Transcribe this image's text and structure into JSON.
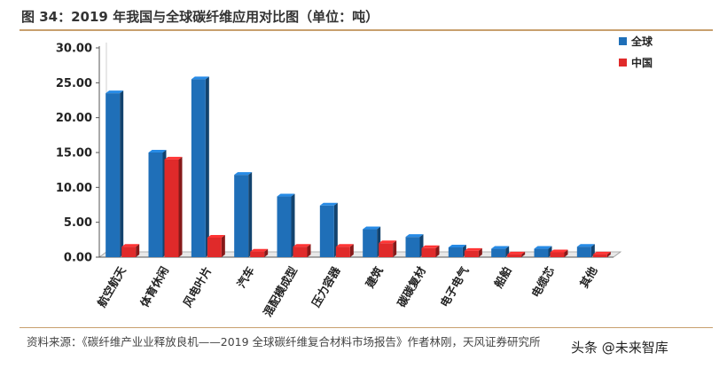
{
  "title": "图 34：2019 年我国与全球碳纤维应用对比图（单位：吨）",
  "source": "资料来源：《碳纤维产业业释放良机——2019 全球碳纤维复合材料市场报告》作者林刚，天风证券研究所",
  "watermark": "头条 @未来智库",
  "chart_data": {
    "type": "bar",
    "title": "图 34：2019 年我国与全球碳纤维应用对比图（单位：吨）",
    "categories": [
      "航空航天",
      "体育休闲",
      "风电叶片",
      "汽车",
      "混配模成型",
      "压力容器",
      "建筑",
      "碳碳复材",
      "电子电气",
      "船舶",
      "电缆芯",
      "其他"
    ],
    "series": [
      {
        "name": "全球",
        "color": "#1f6fb8",
        "values": [
          23.5,
          15.0,
          25.5,
          11.8,
          8.7,
          7.4,
          4.0,
          2.9,
          1.4,
          1.2,
          1.2,
          1.5
        ]
      },
      {
        "name": "中国",
        "color": "#e02a2a",
        "values": [
          1.5,
          14.0,
          2.8,
          0.8,
          1.5,
          1.5,
          2.0,
          1.3,
          0.9,
          0.4,
          0.7,
          0.4
        ]
      }
    ],
    "yticks": [
      "0.00",
      "5.00",
      "10.00",
      "15.00",
      "20.00",
      "25.00",
      "30.00"
    ],
    "ylim": [
      0,
      30
    ],
    "legend_position": "top-right",
    "grid": false
  }
}
